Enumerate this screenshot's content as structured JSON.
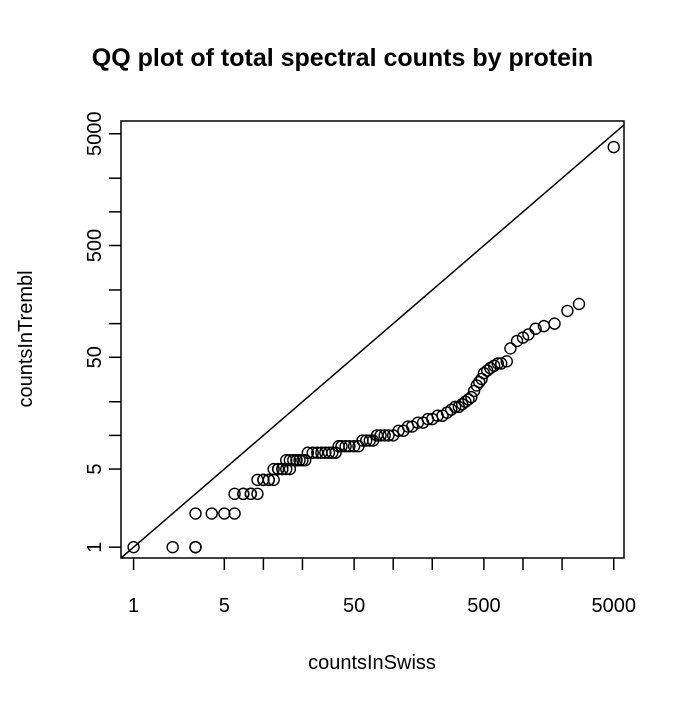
{
  "chart_data": {
    "type": "scatter",
    "title": "QQ plot of total spectral counts by protein",
    "xlabel": "countsInSwiss",
    "ylabel": "countsInTrembl",
    "log_x": true,
    "log_y": true,
    "xlim": [
      0.8,
      6000
    ],
    "ylim": [
      0.8,
      6500
    ],
    "x_ticks": [
      1,
      5,
      10,
      20,
      50,
      100,
      200,
      500,
      1000,
      2000,
      5000
    ],
    "x_tick_labels": [
      "1",
      "5",
      "50",
      "500",
      "5000"
    ],
    "y_ticks": [
      1,
      5,
      10,
      20,
      50,
      100,
      200,
      500,
      1000,
      2000,
      5000
    ],
    "y_tick_labels": [
      "1",
      "5",
      "50",
      "500",
      "5000"
    ],
    "reference_line": "y = x",
    "points": {
      "x": [
        1,
        2,
        3,
        3,
        3,
        3,
        4,
        5,
        6,
        6,
        7,
        7,
        8,
        8,
        8,
        9,
        9,
        10,
        10,
        11,
        11,
        12,
        12,
        13,
        13,
        14,
        14,
        15,
        15,
        16,
        16,
        17,
        18,
        18,
        19,
        20,
        21,
        22,
        24,
        26,
        28,
        30,
        32,
        34,
        36,
        38,
        40,
        43,
        46,
        50,
        54,
        58,
        62,
        66,
        70,
        75,
        80,
        86,
        92,
        100,
        110,
        120,
        130,
        140,
        155,
        170,
        185,
        200,
        220,
        240,
        260,
        280,
        300,
        320,
        340,
        360,
        380,
        400,
        420,
        440,
        460,
        480,
        500,
        530,
        560,
        600,
        640,
        680,
        750,
        800,
        900,
        1000,
        1100,
        1250,
        1450,
        1750,
        2200,
        2700,
        5000
      ],
      "y": [
        1,
        1,
        1,
        1,
        1,
        2,
        2,
        2,
        2,
        3,
        3,
        3,
        3,
        3,
        3,
        3,
        4,
        4,
        4,
        4,
        4,
        4,
        5,
        5,
        5,
        5,
        5,
        5,
        6,
        5,
        6,
        6,
        6,
        6,
        6,
        6,
        6,
        7,
        7,
        7,
        7,
        7,
        7,
        7,
        7,
        8,
        8,
        8,
        8,
        8,
        8,
        9,
        9,
        9,
        9,
        10,
        10,
        10,
        10,
        10,
        11,
        11,
        12,
        12,
        13,
        13,
        14,
        14,
        15,
        15,
        16,
        17,
        18,
        18,
        19,
        20,
        21,
        22,
        25,
        28,
        30,
        32,
        36,
        38,
        40,
        42,
        44,
        44,
        46,
        60,
        70,
        75,
        80,
        90,
        95,
        100,
        130,
        150,
        3800
      ]
    }
  }
}
